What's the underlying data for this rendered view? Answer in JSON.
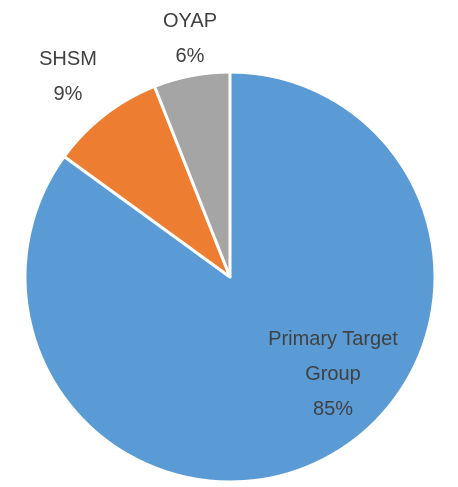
{
  "chart_data": {
    "type": "pie",
    "categories": [
      "Primary Target Group",
      "SHSM",
      "OYAP"
    ],
    "values": [
      85,
      9,
      6
    ],
    "value_labels": [
      "85%",
      "9%",
      "6%"
    ],
    "colors": [
      "#5b9bd5",
      "#ed7d31",
      "#a5a5a5"
    ]
  }
}
